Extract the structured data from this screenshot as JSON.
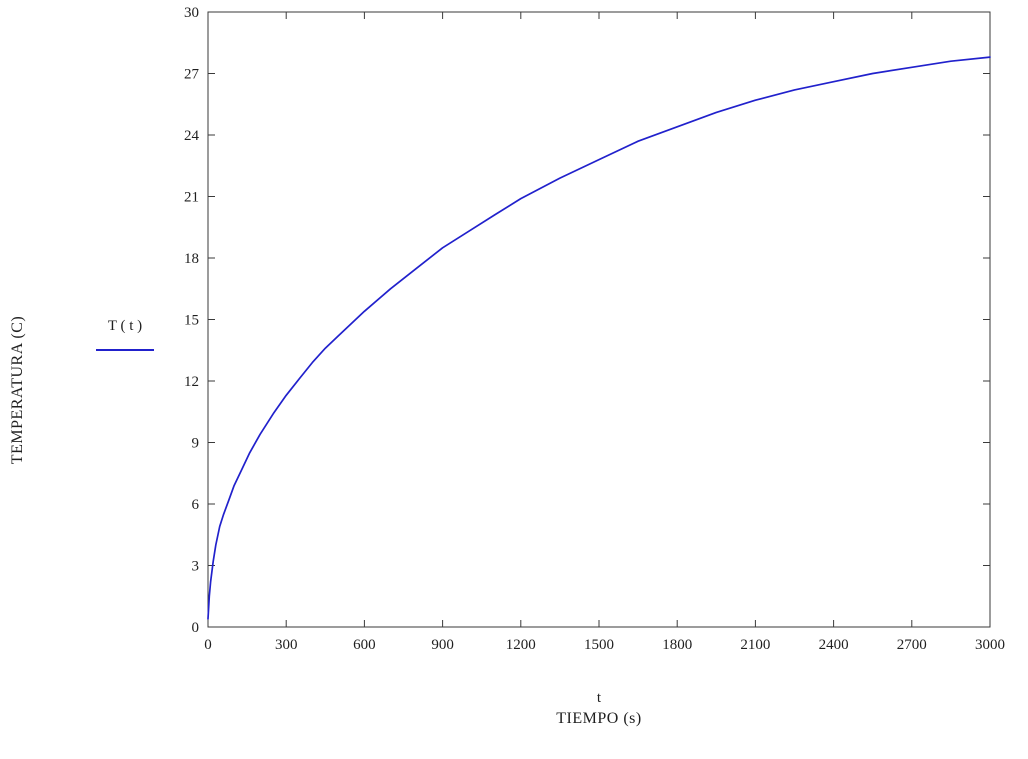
{
  "page": {
    "background_color": "#ffffff"
  },
  "chart_data": {
    "type": "line",
    "title": "",
    "xlabel_line1": "t",
    "xlabel_line2": "TIEMPO (s)",
    "ylabel": "TEMPERATURA (C)",
    "legend": {
      "label": "T ( t )",
      "position": "left-middle"
    },
    "xlim": [
      0,
      3000
    ],
    "ylim": [
      0,
      30
    ],
    "x_ticks": [
      0,
      300,
      600,
      900,
      1200,
      1500,
      1800,
      2100,
      2400,
      2700,
      3000
    ],
    "y_ticks": [
      0,
      3,
      6,
      9,
      12,
      15,
      18,
      21,
      24,
      27,
      30
    ],
    "grid": false,
    "frame": true,
    "curve_color": "#2121cc",
    "frame_color": "#3a3a3a",
    "text_color": "#1f1f1f",
    "series": [
      {
        "name": "T(t)",
        "points": [
          [
            0,
            0.4
          ],
          [
            5,
            1.5
          ],
          [
            10,
            2.2
          ],
          [
            20,
            3.2
          ],
          [
            30,
            4.0
          ],
          [
            45,
            4.9
          ],
          [
            60,
            5.5
          ],
          [
            80,
            6.2
          ],
          [
            100,
            6.9
          ],
          [
            130,
            7.7
          ],
          [
            160,
            8.5
          ],
          [
            200,
            9.4
          ],
          [
            250,
            10.4
          ],
          [
            300,
            11.3
          ],
          [
            350,
            12.1
          ],
          [
            400,
            12.9
          ],
          [
            450,
            13.6
          ],
          [
            500,
            14.2
          ],
          [
            600,
            15.4
          ],
          [
            700,
            16.5
          ],
          [
            800,
            17.5
          ],
          [
            900,
            18.5
          ],
          [
            1000,
            19.3
          ],
          [
            1100,
            20.1
          ],
          [
            1200,
            20.9
          ],
          [
            1350,
            21.9
          ],
          [
            1500,
            22.8
          ],
          [
            1650,
            23.7
          ],
          [
            1800,
            24.4
          ],
          [
            1950,
            25.1
          ],
          [
            2100,
            25.7
          ],
          [
            2250,
            26.2
          ],
          [
            2400,
            26.6
          ],
          [
            2550,
            27.0
          ],
          [
            2700,
            27.3
          ],
          [
            2850,
            27.6
          ],
          [
            3000,
            27.8
          ]
        ]
      }
    ]
  }
}
